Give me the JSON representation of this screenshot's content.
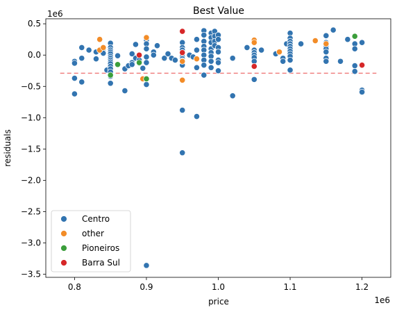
{
  "chart_data": {
    "type": "scatter",
    "title": "Best Value",
    "xlabel": "price",
    "ylabel": "residuals",
    "x_offset_label": "1e6",
    "y_offset_label": "1e6",
    "xlim": [
      0.76,
      1.24
    ],
    "ylim": [
      -3.55,
      0.58
    ],
    "x_ticks": [
      0.8,
      0.9,
      1.0,
      1.1,
      1.2
    ],
    "x_tick_labels": [
      "0.8",
      "0.9",
      "1.0",
      "1.1",
      "1.2"
    ],
    "y_ticks": [
      0.5,
      0.0,
      -0.5,
      -1.0,
      -1.5,
      -2.0,
      -2.5,
      -3.0,
      -3.5
    ],
    "y_tick_labels": [
      "0.5",
      "0.0",
      "−0.5",
      "−1.0",
      "−1.5",
      "−2.0",
      "−2.5",
      "−3.0",
      "−3.5"
    ],
    "grid": false,
    "legend_position": "lower-left",
    "reference_line": {
      "y": -0.29,
      "x_range": [
        0.78,
        1.22
      ],
      "color": "#f08080",
      "style": "dashed"
    },
    "series": [
      {
        "name": "Centro",
        "color": "#3274b0",
        "points": [
          [
            0.8,
            -0.1
          ],
          [
            0.8,
            -0.13
          ],
          [
            0.8,
            -0.37
          ],
          [
            0.8,
            -0.62
          ],
          [
            0.81,
            0.12
          ],
          [
            0.81,
            -0.05
          ],
          [
            0.81,
            -0.43
          ],
          [
            0.82,
            0.08
          ],
          [
            0.83,
            0.05
          ],
          [
            0.83,
            -0.06
          ],
          [
            0.84,
            0.1
          ],
          [
            0.84,
            0.03
          ],
          [
            0.845,
            -0.24
          ],
          [
            0.85,
            0.19
          ],
          [
            0.85,
            0.12
          ],
          [
            0.85,
            0.08
          ],
          [
            0.85,
            0.05
          ],
          [
            0.85,
            0.02
          ],
          [
            0.85,
            -0.02
          ],
          [
            0.85,
            -0.05
          ],
          [
            0.85,
            -0.08
          ],
          [
            0.85,
            -0.11
          ],
          [
            0.85,
            -0.14
          ],
          [
            0.85,
            -0.18
          ],
          [
            0.85,
            -0.22
          ],
          [
            0.85,
            -0.27
          ],
          [
            0.85,
            -0.34
          ],
          [
            0.85,
            -0.45
          ],
          [
            0.86,
            -0.01
          ],
          [
            0.87,
            -0.22
          ],
          [
            0.87,
            -0.57
          ],
          [
            0.875,
            -0.17
          ],
          [
            0.88,
            -0.12
          ],
          [
            0.88,
            -0.15
          ],
          [
            0.88,
            0.02
          ],
          [
            0.885,
            0.17
          ],
          [
            0.885,
            -0.05
          ],
          [
            0.89,
            -0.08
          ],
          [
            0.89,
            -0.13
          ],
          [
            0.895,
            -0.21
          ],
          [
            0.9,
            0.24
          ],
          [
            0.9,
            0.18
          ],
          [
            0.9,
            0.1
          ],
          [
            0.9,
            -0.03
          ],
          [
            0.9,
            -0.12
          ],
          [
            0.9,
            -0.47
          ],
          [
            0.9,
            -3.36
          ],
          [
            0.91,
            0.05
          ],
          [
            0.91,
            0.0
          ],
          [
            0.915,
            0.15
          ],
          [
            0.925,
            -0.05
          ],
          [
            0.93,
            0.02
          ],
          [
            0.935,
            -0.05
          ],
          [
            0.94,
            -0.08
          ],
          [
            0.95,
            0.38
          ],
          [
            0.95,
            0.2
          ],
          [
            0.95,
            0.12
          ],
          [
            0.95,
            0.08
          ],
          [
            0.95,
            0.04
          ],
          [
            0.95,
            0.0
          ],
          [
            0.95,
            -0.03
          ],
          [
            0.95,
            -0.06
          ],
          [
            0.95,
            -0.09
          ],
          [
            0.95,
            -0.12
          ],
          [
            0.95,
            -0.16
          ],
          [
            0.95,
            -0.88
          ],
          [
            0.95,
            -1.56
          ],
          [
            0.96,
            0.0
          ],
          [
            0.965,
            -0.03
          ],
          [
            0.97,
            0.25
          ],
          [
            0.97,
            0.08
          ],
          [
            0.97,
            -0.2
          ],
          [
            0.97,
            -0.98
          ],
          [
            0.98,
            0.39
          ],
          [
            0.98,
            0.32
          ],
          [
            0.98,
            0.22
          ],
          [
            0.98,
            0.14
          ],
          [
            0.98,
            0.08
          ],
          [
            0.98,
            0.0
          ],
          [
            0.98,
            -0.08
          ],
          [
            0.98,
            -0.16
          ],
          [
            0.98,
            -0.32
          ],
          [
            0.99,
            0.35
          ],
          [
            0.99,
            0.28
          ],
          [
            0.99,
            0.2
          ],
          [
            0.99,
            0.1
          ],
          [
            0.99,
            0.04
          ],
          [
            0.99,
            -0.02
          ],
          [
            0.99,
            -0.1
          ],
          [
            0.99,
            -0.2
          ],
          [
            0.995,
            0.38
          ],
          [
            0.995,
            0.3
          ],
          [
            0.995,
            0.22
          ],
          [
            0.995,
            0.15
          ],
          [
            1.0,
            0.32
          ],
          [
            1.0,
            0.25
          ],
          [
            1.0,
            0.12
          ],
          [
            1.0,
            0.05
          ],
          [
            1.0,
            -0.08
          ],
          [
            1.0,
            -0.12
          ],
          [
            1.0,
            -0.25
          ],
          [
            1.02,
            -0.05
          ],
          [
            1.02,
            -0.65
          ],
          [
            1.04,
            0.12
          ],
          [
            1.05,
            0.08
          ],
          [
            1.05,
            0.04
          ],
          [
            1.05,
            0.0
          ],
          [
            1.05,
            -0.04
          ],
          [
            1.05,
            -0.1
          ],
          [
            1.05,
            -0.18
          ],
          [
            1.05,
            -0.39
          ],
          [
            1.06,
            0.08
          ],
          [
            1.08,
            0.02
          ],
          [
            1.09,
            -0.05
          ],
          [
            1.09,
            -0.1
          ],
          [
            1.095,
            0.18
          ],
          [
            1.1,
            0.35
          ],
          [
            1.1,
            0.27
          ],
          [
            1.1,
            0.22
          ],
          [
            1.1,
            0.18
          ],
          [
            1.1,
            0.14
          ],
          [
            1.1,
            0.1
          ],
          [
            1.1,
            0.06
          ],
          [
            1.1,
            0.02
          ],
          [
            1.1,
            -0.02
          ],
          [
            1.1,
            -0.08
          ],
          [
            1.1,
            -0.24
          ],
          [
            1.115,
            0.18
          ],
          [
            1.15,
            0.31
          ],
          [
            1.15,
            0.2
          ],
          [
            1.15,
            0.14
          ],
          [
            1.15,
            0.1
          ],
          [
            1.15,
            0.05
          ],
          [
            1.15,
            -0.05
          ],
          [
            1.15,
            -0.1
          ],
          [
            1.16,
            0.4
          ],
          [
            1.17,
            -0.1
          ],
          [
            1.18,
            0.25
          ],
          [
            1.19,
            0.18
          ],
          [
            1.19,
            0.1
          ],
          [
            1.19,
            -0.17
          ],
          [
            1.19,
            -0.26
          ],
          [
            1.2,
            0.2
          ],
          [
            1.2,
            -0.56
          ],
          [
            1.2,
            -0.59
          ]
        ]
      },
      {
        "name": "other",
        "color": "#f28c28",
        "points": [
          [
            0.835,
            0.25
          ],
          [
            0.835,
            0.08
          ],
          [
            0.84,
            0.12
          ],
          [
            0.9,
            0.28
          ],
          [
            0.895,
            -0.38
          ],
          [
            0.95,
            -0.4
          ],
          [
            0.95,
            -0.1
          ],
          [
            0.97,
            -0.06
          ],
          [
            1.05,
            0.24
          ],
          [
            1.05,
            0.2
          ],
          [
            1.085,
            0.05
          ],
          [
            1.135,
            0.23
          ],
          [
            1.15,
            0.18
          ]
        ]
      },
      {
        "name": "Pioneiros",
        "color": "#3b9e3b",
        "points": [
          [
            0.85,
            -0.32
          ],
          [
            0.86,
            -0.15
          ],
          [
            0.89,
            -0.12
          ],
          [
            0.9,
            -0.38
          ],
          [
            1.19,
            0.3
          ]
        ]
      },
      {
        "name": "Barra Sul",
        "color": "#d62728",
        "points": [
          [
            0.89,
            0.0
          ],
          [
            0.95,
            0.38
          ],
          [
            0.95,
            0.04
          ],
          [
            1.05,
            -0.18
          ],
          [
            1.2,
            -0.16
          ]
        ]
      }
    ]
  }
}
